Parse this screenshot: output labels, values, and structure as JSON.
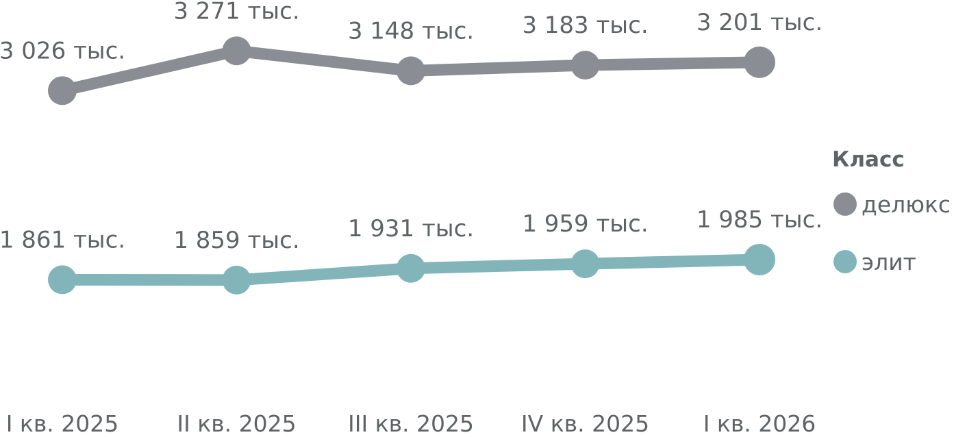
{
  "chart_data": {
    "type": "line",
    "categories": [
      "I кв. 2025",
      "II кв. 2025",
      "III кв. 2025",
      "IV кв. 2025",
      "I кв. 2026"
    ],
    "series": [
      {
        "name": "делюкс",
        "color": "#8a8e94",
        "values": [
          3026,
          3271,
          3148,
          3183,
          3201
        ],
        "labels": [
          "3 026 тыс.",
          "3 271 тыс.",
          "3 148 тыс.",
          "3 183 тыс.",
          "3 201 тыс."
        ]
      },
      {
        "name": "элит",
        "color": "#82b5ba",
        "values": [
          1861,
          1859,
          1931,
          1959,
          1985
        ],
        "labels": [
          "1 861 тыс.",
          "1 859 тыс.",
          "1 931 тыс.",
          "1 959 тыс.",
          "1 985 тыс."
        ]
      }
    ],
    "ylim": [
      1200,
      3500
    ],
    "grid": false,
    "legend": {
      "title": "Класс",
      "placement": "right"
    }
  }
}
